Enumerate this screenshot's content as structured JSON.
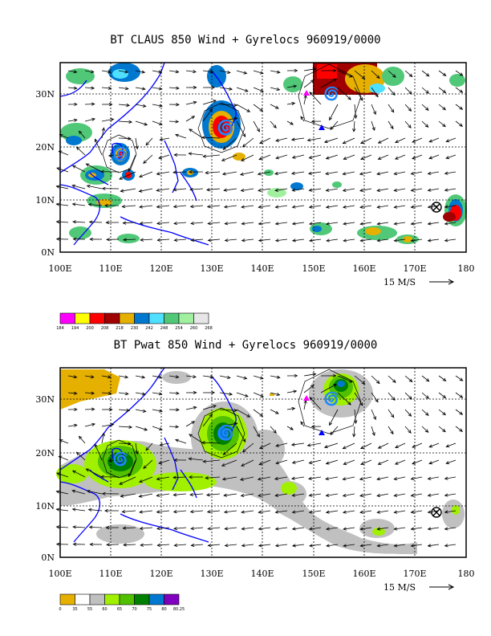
{
  "charts": [
    {
      "title": "BT CLAUS 850 Wind + Gyrelocs 960919/0000",
      "ref_vector_label": "15 M/S",
      "legend": {
        "labels": [
          "184",
          "194",
          "200",
          "208",
          "218",
          "230",
          "242",
          "248",
          "254",
          "260",
          "268"
        ],
        "colors": [
          "#ff00ff",
          "#ffff00",
          "#ff0000",
          "#a00000",
          "#e6b000",
          "#0078d0",
          "#50e0ff",
          "#50c878",
          "#a0f0a0",
          "#e6e6e6"
        ]
      }
    },
    {
      "title": "BT Pwat 850 Wind + Gyrelocs 960919/0000",
      "ref_vector_label": "15 M/S",
      "legend": {
        "labels": [
          "0",
          "35",
          "55",
          "60",
          "65",
          "70",
          "75",
          "80",
          "80.25"
        ],
        "colors": [
          "#e6b000",
          "#ffffff",
          "#c0c0c0",
          "#a0f000",
          "#50c000",
          "#008000",
          "#0078d0",
          "#8000c0"
        ]
      }
    }
  ],
  "chart_data": [
    {
      "type": "heatmap",
      "title": "BT CLAUS 850 Wind + Gyrelocs 960919/0000",
      "x_ticks": [
        "100E",
        "110E",
        "120E",
        "130E",
        "140E",
        "150E",
        "160E",
        "170E",
        "180"
      ],
      "y_ticks": [
        "0N",
        "10N",
        "20N",
        "30N"
      ],
      "xlim": [
        100,
        180
      ],
      "ylim": [
        0,
        36
      ],
      "grid": true,
      "overlays": [
        "850 hPa wind vectors",
        "gyre locations",
        "coastlines"
      ],
      "gyre_markers": [
        {
          "lon": 112,
          "lat": 19,
          "symbol": "typhoon"
        },
        {
          "lon": 130,
          "lat": 24,
          "symbol": "typhoon"
        },
        {
          "lon": 153,
          "lat": 31,
          "symbol": "typhoon"
        },
        {
          "lon": 175,
          "lat": 9,
          "symbol": "crossed-circle"
        }
      ]
    },
    {
      "type": "heatmap",
      "title": "BT Pwat 850 Wind + Gyrelocs 960919/0000",
      "x_ticks": [
        "100E",
        "110E",
        "120E",
        "130E",
        "140E",
        "150E",
        "160E",
        "170E",
        "180"
      ],
      "y_ticks": [
        "0N",
        "10N",
        "20N",
        "30N"
      ],
      "xlim": [
        100,
        180
      ],
      "ylim": [
        0,
        36
      ],
      "grid": true,
      "overlays": [
        "850 hPa wind vectors",
        "gyre locations",
        "coastlines"
      ],
      "gyre_markers": [
        {
          "lon": 112,
          "lat": 19,
          "symbol": "typhoon"
        },
        {
          "lon": 130,
          "lat": 24,
          "symbol": "typhoon"
        },
        {
          "lon": 153,
          "lat": 31,
          "symbol": "typhoon"
        },
        {
          "lon": 175,
          "lat": 9,
          "symbol": "crossed-circle"
        }
      ]
    }
  ]
}
